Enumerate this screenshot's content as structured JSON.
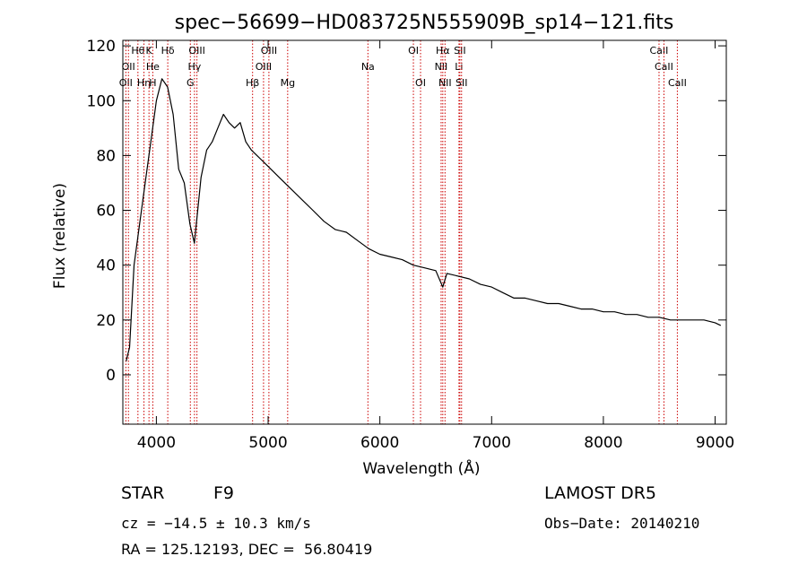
{
  "chart_data": {
    "type": "line",
    "title": "spec−56699−HD083725N555909B_sp14−121.fits",
    "xlabel": "Wavelength (Å)",
    "ylabel": "Flux (relative)",
    "xlim": [
      3700,
      9100
    ],
    "ylim": [
      -18,
      122
    ],
    "x_ticks": [
      4000,
      5000,
      6000,
      7000,
      8000,
      9000
    ],
    "y_ticks": [
      0,
      20,
      40,
      60,
      80,
      100,
      120
    ],
    "line_color": "#000000",
    "marker_color": "#cc0000",
    "series": [
      {
        "x": [
          3730,
          3760,
          3800,
          3850,
          3900,
          3950,
          4000,
          4050,
          4100,
          4150,
          4200,
          4250,
          4300,
          4340,
          4400,
          4450,
          4500,
          4550,
          4600,
          4650,
          4700,
          4750,
          4800,
          4850,
          4900,
          4950,
          5000,
          5100,
          5200,
          5300,
          5400,
          5500,
          5600,
          5700,
          5800,
          5900,
          6000,
          6100,
          6200,
          6300,
          6400,
          6500,
          6563,
          6600,
          6700,
          6800,
          6900,
          7000,
          7100,
          7200,
          7300,
          7400,
          7500,
          7600,
          7700,
          7800,
          7900,
          8000,
          8100,
          8200,
          8300,
          8400,
          8500,
          8600,
          8700,
          8800,
          8900,
          9000,
          9050
        ],
        "y": [
          5,
          10,
          40,
          55,
          70,
          85,
          100,
          108,
          105,
          95,
          75,
          70,
          55,
          48,
          72,
          82,
          85,
          90,
          95,
          92,
          90,
          92,
          85,
          82,
          80,
          78,
          76,
          72,
          68,
          64,
          60,
          56,
          53,
          52,
          49,
          46,
          44,
          43,
          42,
          40,
          39,
          38,
          32,
          37,
          36,
          35,
          33,
          32,
          30,
          28,
          28,
          27,
          26,
          26,
          25,
          24,
          24,
          23,
          23,
          22,
          22,
          21,
          21,
          20,
          20,
          20,
          20,
          19,
          18
        ]
      }
    ],
    "line_markers": [
      {
        "wl": 3727,
        "lines": [
          {
            "label": "OII",
            "row": 2
          }
        ]
      },
      {
        "wl": 3750,
        "lines": [
          {
            "label": "OII",
            "row": 1
          }
        ]
      },
      {
        "wl": 3835,
        "lines": [
          {
            "label": "Hθ",
            "row": 0
          }
        ]
      },
      {
        "wl": 3889,
        "lines": [
          {
            "label": "Hη",
            "row": 2
          }
        ]
      },
      {
        "wl": 3934,
        "lines": [
          {
            "label": "K",
            "row": 0
          }
        ]
      },
      {
        "wl": 3968,
        "lines": [
          {
            "label": "H",
            "row": 2
          },
          {
            "label": "He",
            "row": 1
          }
        ]
      },
      {
        "wl": 4102,
        "lines": [
          {
            "label": "Hδ",
            "row": 0
          }
        ]
      },
      {
        "wl": 4304,
        "lines": [
          {
            "label": "G",
            "row": 2
          }
        ]
      },
      {
        "wl": 4341,
        "lines": [
          {
            "label": "Hγ",
            "row": 1
          }
        ]
      },
      {
        "wl": 4363,
        "lines": [
          {
            "label": "OIII",
            "row": 0
          }
        ]
      },
      {
        "wl": 4861,
        "lines": [
          {
            "label": "Hβ",
            "row": 2
          }
        ]
      },
      {
        "wl": 4959,
        "lines": [
          {
            "label": "OIII",
            "row": 1
          }
        ]
      },
      {
        "wl": 5007,
        "lines": [
          {
            "label": "OIII",
            "row": 0
          }
        ]
      },
      {
        "wl": 5175,
        "lines": [
          {
            "label": "Mg",
            "row": 2
          }
        ]
      },
      {
        "wl": 5893,
        "lines": [
          {
            "label": "Na",
            "row": 1
          }
        ]
      },
      {
        "wl": 6300,
        "lines": [
          {
            "label": "OI",
            "row": 0
          }
        ]
      },
      {
        "wl": 6364,
        "lines": [
          {
            "label": "OI",
            "row": 2
          }
        ]
      },
      {
        "wl": 6548,
        "lines": [
          {
            "label": "NII",
            "row": 1
          }
        ]
      },
      {
        "wl": 6563,
        "lines": [
          {
            "label": "Hα",
            "row": 0
          }
        ]
      },
      {
        "wl": 6583,
        "lines": [
          {
            "label": "NII",
            "row": 2
          }
        ]
      },
      {
        "wl": 6708,
        "lines": [
          {
            "label": "Li",
            "row": 1
          }
        ]
      },
      {
        "wl": 6716,
        "lines": [
          {
            "label": "SII",
            "row": 0
          }
        ]
      },
      {
        "wl": 6731,
        "lines": [
          {
            "label": "SII",
            "row": 2
          }
        ]
      },
      {
        "wl": 8498,
        "lines": [
          {
            "label": "CaII",
            "row": 0
          }
        ]
      },
      {
        "wl": 8542,
        "lines": [
          {
            "label": "CaII",
            "row": 1
          }
        ]
      },
      {
        "wl": 8662,
        "lines": [
          {
            "label": "CaII",
            "row": 2
          }
        ]
      }
    ]
  },
  "info": {
    "object_class": "STAR",
    "subclass": "F9",
    "cz": "cz = −14.5 ± 10.3 km/s",
    "coords": "RA = 125.12193, DEC =  56.80419",
    "survey": "LAMOST DR5",
    "obs_date": "Obs−Date: 20140210"
  }
}
